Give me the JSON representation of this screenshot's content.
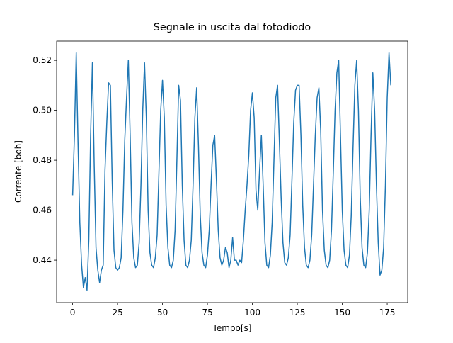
{
  "chart_data": {
    "type": "line",
    "title": "Segnale in uscita dal fotodiodo",
    "x_label": "Tempo[s]",
    "y_label": "Corrente [boh]",
    "x": [
      0,
      1,
      2,
      3,
      4,
      5,
      6,
      7,
      8,
      9,
      10,
      11,
      12,
      13,
      14,
      15,
      16,
      17,
      18,
      19,
      20,
      21,
      22,
      23,
      24,
      25,
      26,
      27,
      28,
      29,
      30,
      31,
      32,
      33,
      34,
      35,
      36,
      37,
      38,
      39,
      40,
      41,
      42,
      43,
      44,
      45,
      46,
      47,
      48,
      49,
      50,
      51,
      52,
      53,
      54,
      55,
      56,
      57,
      58,
      59,
      60,
      61,
      62,
      63,
      64,
      65,
      66,
      67,
      68,
      69,
      70,
      71,
      72,
      73,
      74,
      75,
      76,
      77,
      78,
      79,
      80,
      81,
      82,
      83,
      84,
      85,
      86,
      87,
      88,
      89,
      90,
      91,
      92,
      93,
      94,
      95,
      96,
      97,
      98,
      99,
      100,
      101,
      102,
      103,
      104,
      105,
      106,
      107,
      108,
      109,
      110,
      111,
      112,
      113,
      114,
      115,
      116,
      117,
      118,
      119,
      120,
      121,
      122,
      123,
      124,
      125,
      126,
      127,
      128,
      129,
      130,
      131,
      132,
      133,
      134,
      135,
      136,
      137,
      138,
      139,
      140,
      141,
      142,
      143,
      144,
      145,
      146,
      147,
      148,
      149,
      150,
      151,
      152,
      153,
      154,
      155,
      156,
      157,
      158,
      159,
      160,
      161,
      162,
      163,
      164,
      165,
      166,
      167,
      168,
      169,
      170,
      171,
      172,
      173,
      174,
      175,
      176,
      177
    ],
    "series": [
      {
        "name": "Corrente",
        "color": "#1f77b4",
        "values": [
          0.466,
          0.49,
          0.523,
          0.487,
          0.455,
          0.438,
          0.429,
          0.433,
          0.428,
          0.448,
          0.49,
          0.519,
          0.478,
          0.445,
          0.436,
          0.431,
          0.436,
          0.438,
          0.476,
          0.495,
          0.511,
          0.51,
          0.472,
          0.444,
          0.437,
          0.436,
          0.437,
          0.441,
          0.46,
          0.488,
          0.505,
          0.52,
          0.49,
          0.455,
          0.441,
          0.437,
          0.438,
          0.447,
          0.47,
          0.5,
          0.519,
          0.497,
          0.46,
          0.443,
          0.438,
          0.437,
          0.441,
          0.45,
          0.475,
          0.5,
          0.512,
          0.497,
          0.462,
          0.445,
          0.438,
          0.437,
          0.44,
          0.452,
          0.48,
          0.51,
          0.504,
          0.47,
          0.448,
          0.438,
          0.437,
          0.44,
          0.448,
          0.47,
          0.497,
          0.509,
          0.486,
          0.458,
          0.443,
          0.438,
          0.437,
          0.442,
          0.452,
          0.47,
          0.486,
          0.49,
          0.472,
          0.452,
          0.441,
          0.438,
          0.44,
          0.445,
          0.443,
          0.437,
          0.44,
          0.449,
          0.44,
          0.44,
          0.438,
          0.44,
          0.439,
          0.448,
          0.46,
          0.47,
          0.482,
          0.5,
          0.507,
          0.497,
          0.468,
          0.46,
          0.476,
          0.49,
          0.47,
          0.447,
          0.438,
          0.437,
          0.442,
          0.455,
          0.48,
          0.505,
          0.51,
          0.488,
          0.465,
          0.447,
          0.439,
          0.438,
          0.441,
          0.45,
          0.472,
          0.495,
          0.508,
          0.51,
          0.51,
          0.49,
          0.462,
          0.445,
          0.438,
          0.437,
          0.44,
          0.45,
          0.47,
          0.49,
          0.505,
          0.509,
          0.492,
          0.46,
          0.444,
          0.438,
          0.437,
          0.44,
          0.452,
          0.475,
          0.5,
          0.515,
          0.52,
          0.49,
          0.46,
          0.444,
          0.438,
          0.437,
          0.442,
          0.458,
          0.485,
          0.51,
          0.52,
          0.5,
          0.465,
          0.445,
          0.438,
          0.437,
          0.443,
          0.46,
          0.49,
          0.515,
          0.5,
          0.47,
          0.447,
          0.434,
          0.436,
          0.445,
          0.47,
          0.505,
          0.523,
          0.51
        ]
      }
    ],
    "xlim": [
      -8.9,
      186.4
    ],
    "ylim": [
      0.423,
      0.5277
    ],
    "xticks": [
      0,
      25,
      50,
      75,
      100,
      125,
      150,
      175
    ],
    "yticks": [
      0.44,
      0.46,
      0.48,
      {
        "value": 0.5,
        "label": "0.50"
      },
      0.52
    ]
  }
}
